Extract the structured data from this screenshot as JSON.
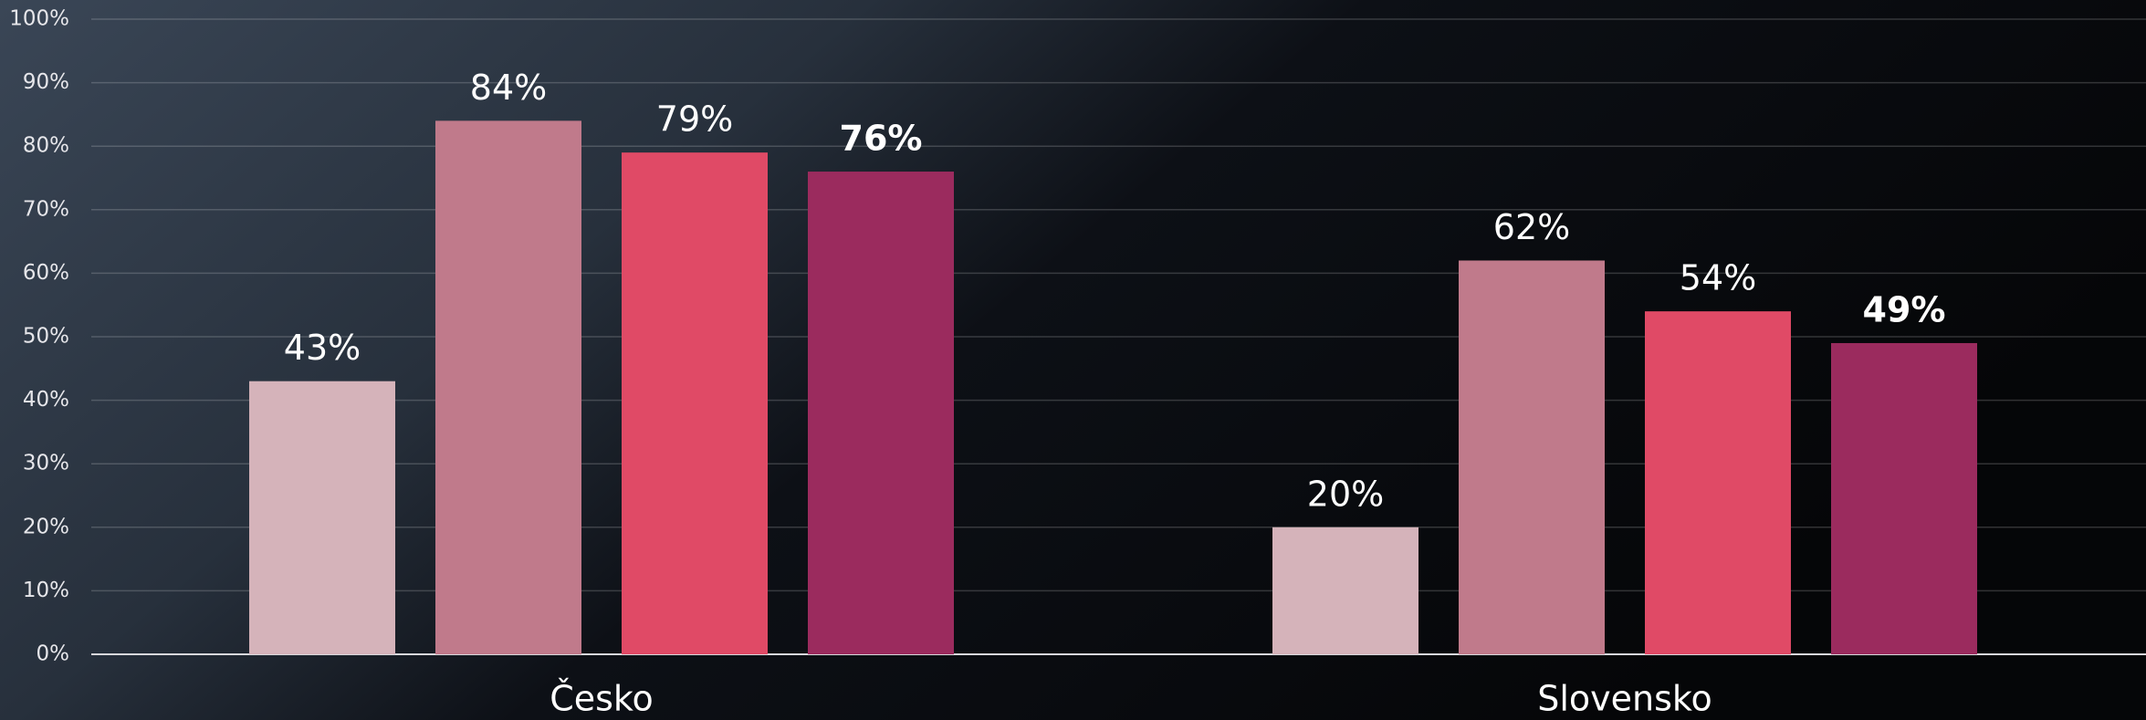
{
  "chart_data": {
    "type": "bar",
    "categories": [
      "Česko",
      "Slovensko"
    ],
    "series": [
      {
        "color": "#d5b3ba",
        "values": [
          43,
          20
        ],
        "value_labels": [
          "43%",
          "20%"
        ]
      },
      {
        "color": "#c07a8b",
        "values": [
          84,
          62
        ],
        "value_labels": [
          "84%",
          "62%"
        ]
      },
      {
        "color": "#e04a66",
        "values": [
          79,
          54
        ],
        "value_labels": [
          "79%",
          "54%"
        ]
      },
      {
        "color": "#9b2b5e",
        "values": [
          76,
          49
        ],
        "value_labels": [
          "76%",
          "49%"
        ]
      }
    ],
    "ylim": [
      0,
      100
    ],
    "yticks": [
      {
        "value": 0,
        "label": "0%"
      },
      {
        "value": 10,
        "label": "10%"
      },
      {
        "value": 20,
        "label": "20%"
      },
      {
        "value": 30,
        "label": "30%"
      },
      {
        "value": 40,
        "label": "40%"
      },
      {
        "value": 50,
        "label": "50%"
      },
      {
        "value": 60,
        "label": "60%"
      },
      {
        "value": 70,
        "label": "70%"
      },
      {
        "value": 80,
        "label": "80%"
      },
      {
        "value": 90,
        "label": "90%"
      },
      {
        "value": 100,
        "label": "100%"
      }
    ],
    "grid": true
  }
}
